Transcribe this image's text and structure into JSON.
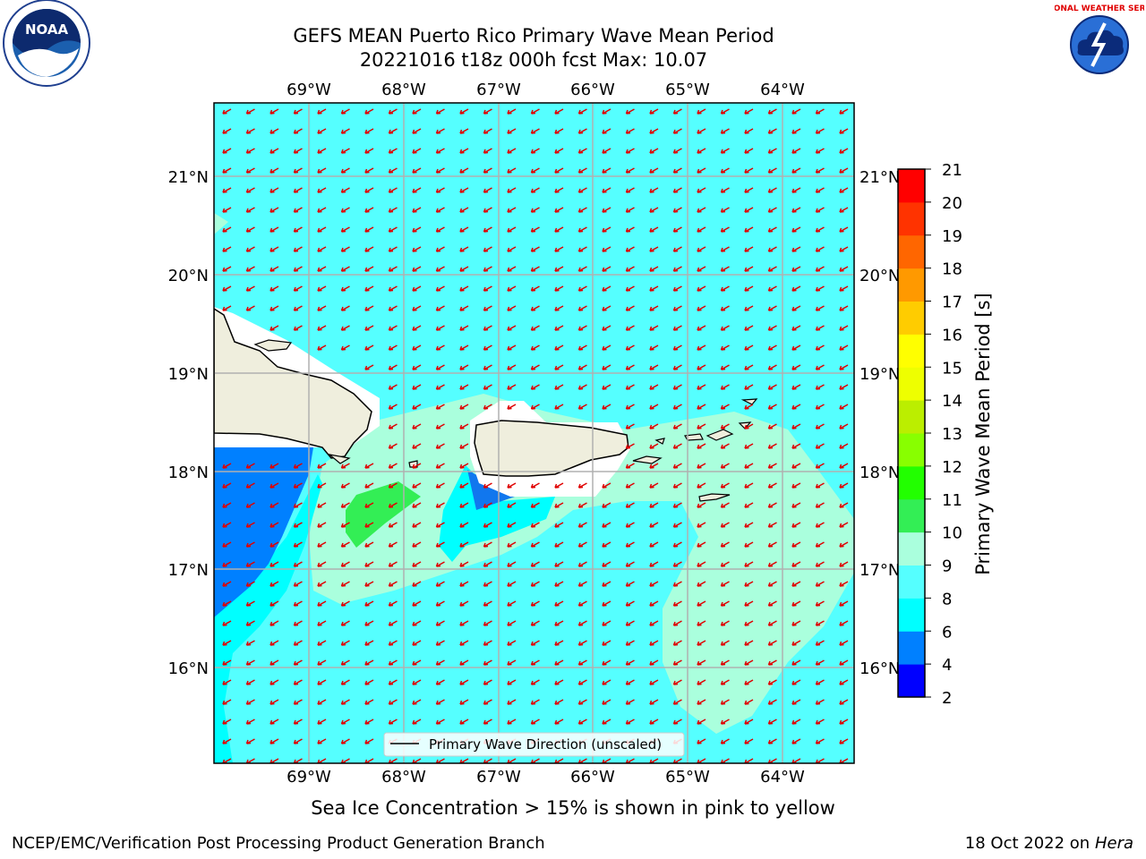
{
  "title": {
    "line1": "GEFS MEAN Puerto Rico Primary Wave Mean Period",
    "line2": "20221016 t18z 000h fcst   Max: 10.07"
  },
  "map": {
    "lon_labels_top": [
      "69°W",
      "68°W",
      "67°W",
      "66°W",
      "65°W",
      "64°W"
    ],
    "lon_labels_bottom": [
      "69°W",
      "68°W",
      "67°W",
      "66°W",
      "65°W",
      "64°W"
    ],
    "lat_labels_left": [
      "21°N",
      "20°N",
      "19°N",
      "18°N",
      "17°N",
      "16°N"
    ],
    "lat_labels_right": [
      "21°N",
      "20°N",
      "19°N",
      "18°N",
      "17°N",
      "16°N"
    ],
    "legend_label": "Primary Wave Direction (unscaled)",
    "arrow_color": "#e00000",
    "land_color": "#efeedd",
    "ocean_color": "#55ffff"
  },
  "colorbar": {
    "label": "Primary Wave Mean Period [s]",
    "ticks": [
      "2",
      "4",
      "6",
      "8",
      "9",
      "10",
      "11",
      "12",
      "13",
      "14",
      "15",
      "16",
      "17",
      "18",
      "19",
      "20",
      "21"
    ],
    "colors": [
      "#0000ff",
      "#0080ff",
      "#00ffff",
      "#55ffff",
      "#aaffdd",
      "#33ee55",
      "#22ff00",
      "#88ff00",
      "#bbee00",
      "#eeff00",
      "#ffff00",
      "#ffcc00",
      "#ff9900",
      "#ff6600",
      "#ff3300",
      "#ff0000"
    ]
  },
  "caption": "Sea Ice Concentration > 15% is shown in pink to yellow",
  "footer": {
    "left": "NCEP/EMC/Verification Post Processing Product Generation Branch",
    "right_prefix": "18 Oct 2022 on ",
    "right_italic": "Hera"
  },
  "logos": {
    "noaa_text": "NOAA",
    "nws_text": "NATIONAL WEATHER SERVICE"
  }
}
